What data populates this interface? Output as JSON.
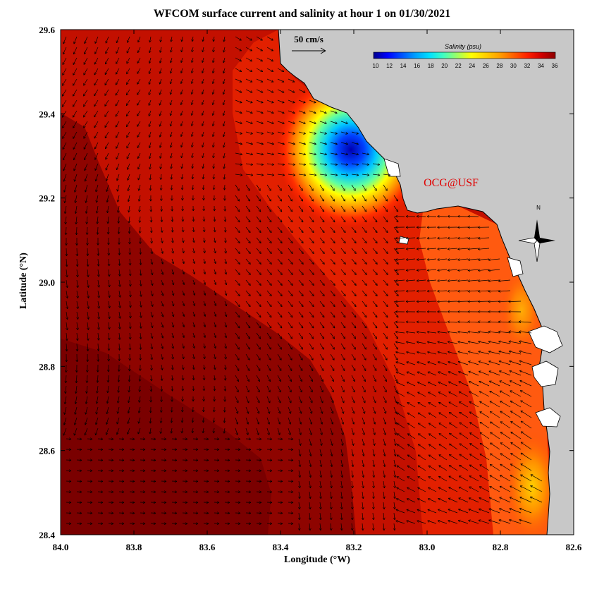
{
  "title": "WFCOM surface current and salinity at hour 1 on 01/30/2021",
  "x_axis_label": "Longitude (°W)",
  "y_axis_label": "Latitude (°N)",
  "x_ticks": [
    "84.0",
    "83.8",
    "83.6",
    "83.4",
    "83.2",
    "83.0",
    "82.8",
    "82.6"
  ],
  "y_ticks": [
    "29.6",
    "29.4",
    "29.2",
    "29.0",
    "28.8",
    "28.6",
    "28.4"
  ],
  "scale_arrow_label": "50 cm/s",
  "colorbar": {
    "title": "Salinity (psu)",
    "ticks": [
      "10",
      "12",
      "14",
      "16",
      "18",
      "20",
      "22",
      "24",
      "26",
      "28",
      "30",
      "32",
      "34",
      "36"
    ],
    "colors": [
      "#00008b",
      "#0000ff",
      "#0050ff",
      "#00a0ff",
      "#00e0ff",
      "#40ffc0",
      "#a0ff60",
      "#ffff00",
      "#ffd000",
      "#ffa000",
      "#ff6000",
      "#ff2000",
      "#d00000",
      "#8b0000"
    ]
  },
  "watermark": "OCG@USF",
  "north_label": "N",
  "colors": {
    "land": "#c8c8c8",
    "deep_water": "#8b0000",
    "fresh_plume": "#0000cd",
    "watermark": "#e00000"
  },
  "map": {
    "lon_range": [
      84.0,
      82.6
    ],
    "lat_range": [
      28.4,
      29.6
    ],
    "field": "surface salinity (psu) with surface current vectors"
  }
}
